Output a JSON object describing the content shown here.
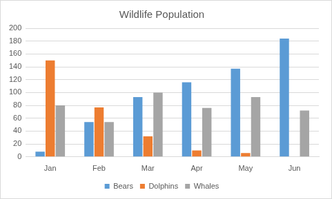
{
  "chart_data": {
    "type": "bar",
    "title": "Wildlife Population",
    "categories": [
      "Jan",
      "Feb",
      "Mar",
      "Apr",
      "May",
      "Jun"
    ],
    "series": [
      {
        "name": "Bears",
        "color": "#5b9bd5",
        "values": [
          8,
          54,
          93,
          116,
          137,
          184
        ]
      },
      {
        "name": "Dolphins",
        "color": "#ed7d31",
        "values": [
          150,
          77,
          32,
          10,
          6,
          0
        ]
      },
      {
        "name": "Whales",
        "color": "#a5a5a5",
        "values": [
          80,
          54,
          100,
          76,
          93,
          72
        ]
      }
    ],
    "ylim": [
      0,
      200
    ],
    "yticks": [
      0,
      20,
      40,
      60,
      80,
      100,
      120,
      140,
      160,
      180,
      200
    ],
    "grid": true,
    "legend": "bottom"
  }
}
